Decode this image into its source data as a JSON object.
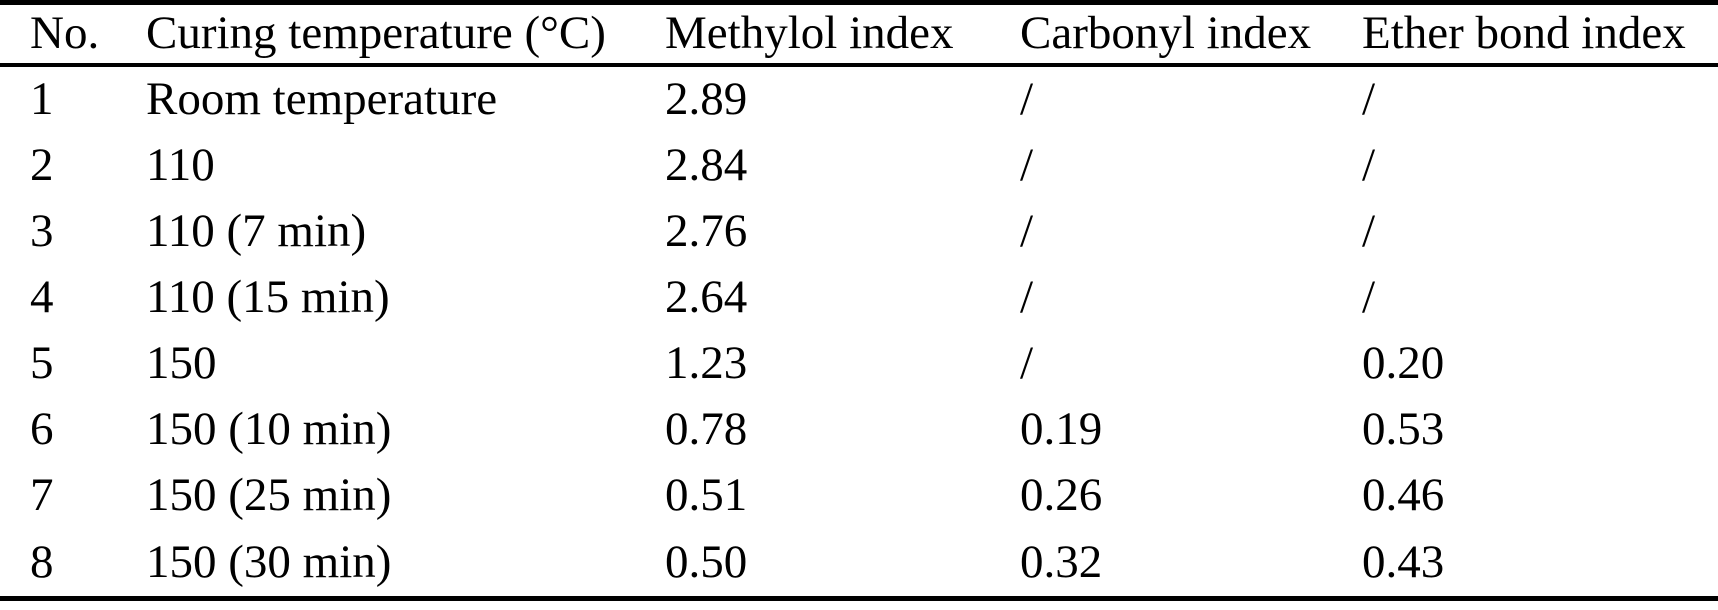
{
  "colors": {
    "text": "#000000",
    "background": "#ffffff",
    "rule": "#000000"
  },
  "table": {
    "columns": [
      "No.",
      "Curing temperature (°C)",
      "Methylol index",
      "Carbonyl index",
      "Ether bond index"
    ],
    "rows": [
      [
        "1",
        "Room temperature",
        "2.89",
        "/",
        "/"
      ],
      [
        "2",
        "110",
        "2.84",
        "/",
        "/"
      ],
      [
        "3",
        "110 (7 min)",
        "2.76",
        "/",
        "/"
      ],
      [
        "4",
        "110 (15 min)",
        "2.64",
        "/",
        "/"
      ],
      [
        "5",
        "150",
        "1.23",
        "/",
        "0.20"
      ],
      [
        "6",
        "150 (10 min)",
        "0.78",
        "0.19",
        "0.53"
      ],
      [
        "7",
        "150 (25 min)",
        "0.51",
        "0.26",
        "0.46"
      ],
      [
        "8",
        "150 (30 min)",
        "0.50",
        "0.32",
        "0.43"
      ]
    ]
  },
  "chart_data": {
    "type": "table",
    "columns": [
      "No.",
      "Curing temperature (°C)",
      "Methylol index",
      "Carbonyl index",
      "Ether bond index"
    ],
    "rows": [
      [
        "1",
        "Room temperature",
        "2.89",
        "/",
        "/"
      ],
      [
        "2",
        "110",
        "2.84",
        "/",
        "/"
      ],
      [
        "3",
        "110 (7 min)",
        "2.76",
        "/",
        "/"
      ],
      [
        "4",
        "110 (15 min)",
        "2.64",
        "/",
        "/"
      ],
      [
        "5",
        "150",
        "1.23",
        "/",
        "0.20"
      ],
      [
        "6",
        "150 (10 min)",
        "0.78",
        "0.19",
        "0.53"
      ],
      [
        "7",
        "150 (25 min)",
        "0.51",
        "0.26",
        "0.46"
      ],
      [
        "8",
        "150 (30 min)",
        "0.50",
        "0.32",
        "0.43"
      ]
    ]
  }
}
